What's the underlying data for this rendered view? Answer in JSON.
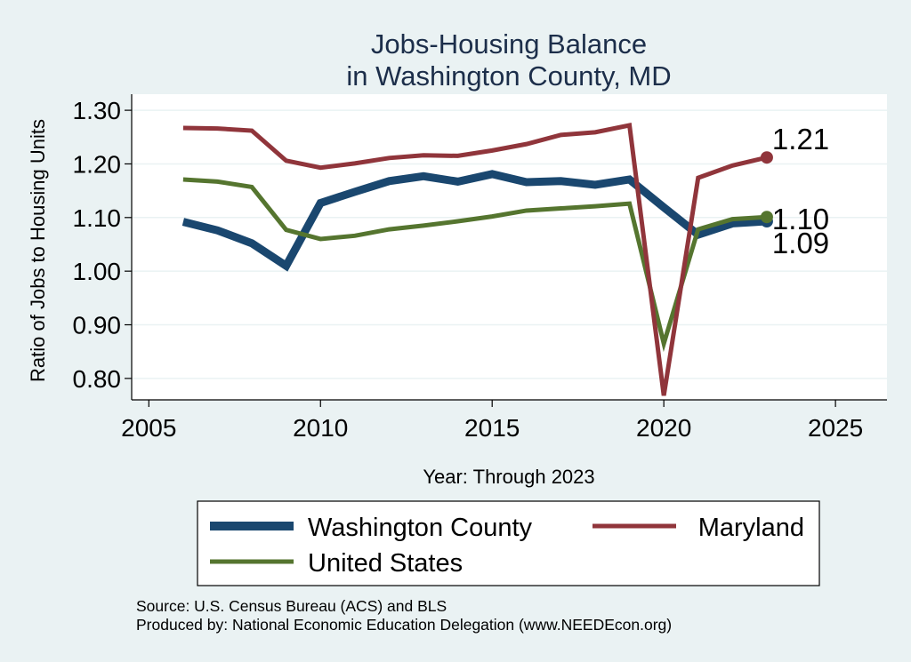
{
  "chart_data": {
    "type": "line",
    "title": [
      "Jobs-Housing Balance",
      "in Washington County, MD"
    ],
    "xlabel": "Year: Through 2023",
    "ylabel": "Ratio of Jobs to Housing Units",
    "xlim": [
      2004.5,
      2026.5
    ],
    "ylim": [
      0.76,
      1.33
    ],
    "xticks": [
      2005,
      2010,
      2015,
      2020,
      2025
    ],
    "yticks": [
      1.3,
      1.2,
      1.1,
      1.0,
      0.9,
      0.8
    ],
    "ytick_labels": [
      "1.30",
      "1.20",
      "1.10",
      "1.00",
      "0.90",
      "0.80"
    ],
    "grid": true,
    "legend_position": "bottom",
    "x": [
      2006,
      2007,
      2008,
      2009,
      2010,
      2011,
      2012,
      2013,
      2014,
      2015,
      2016,
      2017,
      2018,
      2019,
      2020,
      2021,
      2022,
      2023
    ],
    "series": [
      {
        "name": "Washington County",
        "color": "#1a476f",
        "values": [
          1.092,
          1.076,
          1.052,
          1.01,
          1.127,
          1.148,
          1.168,
          1.177,
          1.167,
          1.181,
          1.166,
          1.168,
          1.161,
          1.171,
          1.119,
          1.068,
          1.089,
          1.093
        ],
        "end_label": "1.09"
      },
      {
        "name": "Maryland",
        "color": "#90353b",
        "values": [
          1.267,
          1.266,
          1.262,
          1.206,
          1.193,
          1.201,
          1.211,
          1.216,
          1.215,
          1.225,
          1.237,
          1.254,
          1.259,
          1.272,
          0.768,
          1.174,
          1.197,
          1.212
        ],
        "end_label": "1.21"
      },
      {
        "name": "United States",
        "color": "#55752f",
        "values": [
          1.171,
          1.167,
          1.157,
          1.077,
          1.06,
          1.066,
          1.078,
          1.085,
          1.093,
          1.102,
          1.113,
          1.117,
          1.121,
          1.126,
          0.865,
          1.078,
          1.097,
          1.101
        ],
        "end_label": "1.10"
      }
    ]
  },
  "notes": {
    "source": "Source: U.S. Census Bureau (ACS) and BLS",
    "producer": "Produced by: National Economic Education Delegation (www.NEEDEcon.org)"
  }
}
